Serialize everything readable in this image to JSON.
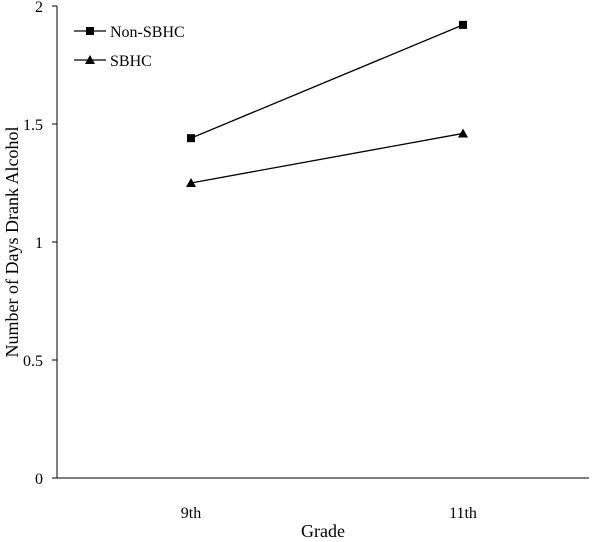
{
  "chart_data": {
    "type": "line",
    "title": "",
    "xlabel": "Grade",
    "ylabel": "Number of Days Drank Alcohol",
    "categories": [
      "9th",
      "11th"
    ],
    "ylim": [
      0,
      2
    ],
    "yticks": [
      "0",
      "0.5",
      "1",
      "1.5",
      "2"
    ],
    "grid": false,
    "legend_position": "top-left",
    "series": [
      {
        "name": "Non-SBHC",
        "marker": "square",
        "values": [
          1.44,
          1.92
        ],
        "color": "#000000"
      },
      {
        "name": "SBHC",
        "marker": "triangle",
        "values": [
          1.25,
          1.46
        ],
        "color": "#000000"
      }
    ]
  }
}
